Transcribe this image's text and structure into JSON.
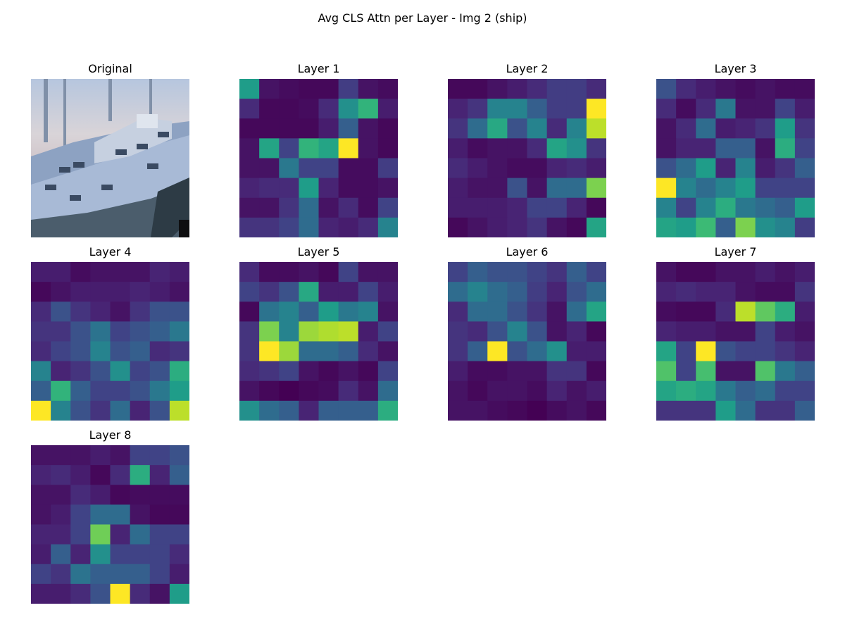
{
  "figure": {
    "title": "Avg CLS Attn per Layer - Img 2 (ship)"
  },
  "colors": {
    "background": "#ffffff",
    "colormap": "viridis",
    "colormap_stops": [
      "#440154",
      "#482878",
      "#3e4a89",
      "#31688e",
      "#26828e",
      "#1f9e89",
      "#35b779",
      "#6ece58",
      "#b5de2b",
      "#fde725"
    ]
  },
  "chart_data": [
    {
      "type": "image",
      "title": "Original",
      "description_source": "input image (ship)"
    },
    {
      "type": "heatmap",
      "title": "Layer 1",
      "colormap": "viridis",
      "values": [
        [
          0.55,
          0.05,
          0.03,
          0.02,
          0.02,
          0.18,
          0.05,
          0.03
        ],
        [
          0.12,
          0.02,
          0.02,
          0.03,
          0.12,
          0.5,
          0.65,
          0.08
        ],
        [
          0.02,
          0.02,
          0.02,
          0.02,
          0.08,
          0.3,
          0.05,
          0.02
        ],
        [
          0.05,
          0.58,
          0.2,
          0.65,
          0.58,
          1.0,
          0.05,
          0.02
        ],
        [
          0.05,
          0.05,
          0.4,
          0.2,
          0.2,
          0.03,
          0.03,
          0.18
        ],
        [
          0.1,
          0.12,
          0.12,
          0.55,
          0.1,
          0.03,
          0.03,
          0.05
        ],
        [
          0.05,
          0.05,
          0.15,
          0.35,
          0.05,
          0.12,
          0.03,
          0.2
        ],
        [
          0.15,
          0.15,
          0.2,
          0.35,
          0.1,
          0.08,
          0.12,
          0.45
        ]
      ]
    },
    {
      "type": "heatmap",
      "title": "Layer 2",
      "colormap": "viridis",
      "values": [
        [
          0.02,
          0.02,
          0.05,
          0.08,
          0.12,
          0.18,
          0.18,
          0.12
        ],
        [
          0.1,
          0.15,
          0.45,
          0.45,
          0.3,
          0.18,
          0.18,
          1.0
        ],
        [
          0.15,
          0.35,
          0.6,
          0.25,
          0.45,
          0.12,
          0.45,
          0.9
        ],
        [
          0.08,
          0.03,
          0.05,
          0.05,
          0.12,
          0.58,
          0.5,
          0.15
        ],
        [
          0.12,
          0.08,
          0.05,
          0.03,
          0.03,
          0.1,
          0.12,
          0.08
        ],
        [
          0.08,
          0.05,
          0.05,
          0.25,
          0.05,
          0.35,
          0.35,
          0.8
        ],
        [
          0.08,
          0.08,
          0.08,
          0.1,
          0.2,
          0.2,
          0.1,
          0.02
        ],
        [
          0.02,
          0.05,
          0.08,
          0.1,
          0.15,
          0.05,
          0.02,
          0.58
        ]
      ]
    },
    {
      "type": "heatmap",
      "title": "Layer 3",
      "colormap": "viridis",
      "values": [
        [
          0.25,
          0.12,
          0.08,
          0.05,
          0.03,
          0.05,
          0.03,
          0.03
        ],
        [
          0.12,
          0.03,
          0.12,
          0.4,
          0.05,
          0.05,
          0.2,
          0.08
        ],
        [
          0.05,
          0.12,
          0.35,
          0.08,
          0.1,
          0.15,
          0.55,
          0.15
        ],
        [
          0.05,
          0.1,
          0.1,
          0.3,
          0.3,
          0.05,
          0.62,
          0.2
        ],
        [
          0.25,
          0.35,
          0.55,
          0.1,
          0.45,
          0.08,
          0.15,
          0.3
        ],
        [
          1.0,
          0.45,
          0.35,
          0.45,
          0.55,
          0.2,
          0.2,
          0.2
        ],
        [
          0.45,
          0.2,
          0.45,
          0.62,
          0.4,
          0.35,
          0.3,
          0.55
        ],
        [
          0.58,
          0.55,
          0.68,
          0.3,
          0.8,
          0.5,
          0.45,
          0.18
        ]
      ]
    },
    {
      "type": "heatmap",
      "title": "Layer 4",
      "colormap": "viridis",
      "values": [
        [
          0.08,
          0.08,
          0.03,
          0.05,
          0.05,
          0.05,
          0.1,
          0.08
        ],
        [
          0.02,
          0.05,
          0.08,
          0.08,
          0.08,
          0.1,
          0.08,
          0.05
        ],
        [
          0.12,
          0.25,
          0.15,
          0.1,
          0.05,
          0.15,
          0.25,
          0.25
        ],
        [
          0.15,
          0.15,
          0.25,
          0.38,
          0.2,
          0.25,
          0.3,
          0.4
        ],
        [
          0.12,
          0.2,
          0.25,
          0.45,
          0.25,
          0.3,
          0.12,
          0.15
        ],
        [
          0.45,
          0.1,
          0.15,
          0.25,
          0.5,
          0.2,
          0.25,
          0.62
        ],
        [
          0.3,
          0.65,
          0.3,
          0.2,
          0.2,
          0.25,
          0.4,
          0.55
        ],
        [
          1.0,
          0.45,
          0.25,
          0.15,
          0.35,
          0.1,
          0.25,
          0.9
        ]
      ]
    },
    {
      "type": "heatmap",
      "title": "Layer 5",
      "colormap": "viridis",
      "values": [
        [
          0.12,
          0.03,
          0.03,
          0.05,
          0.02,
          0.2,
          0.05,
          0.05
        ],
        [
          0.2,
          0.15,
          0.25,
          0.6,
          0.08,
          0.08,
          0.2,
          0.08
        ],
        [
          0.02,
          0.38,
          0.45,
          0.3,
          0.55,
          0.4,
          0.45,
          0.05
        ],
        [
          0.15,
          0.8,
          0.45,
          0.85,
          0.88,
          0.9,
          0.08,
          0.2
        ],
        [
          0.15,
          1.0,
          0.85,
          0.35,
          0.35,
          0.3,
          0.12,
          0.05
        ],
        [
          0.12,
          0.15,
          0.2,
          0.05,
          0.02,
          0.05,
          0.02,
          0.2
        ],
        [
          0.05,
          0.02,
          0.0,
          0.02,
          0.03,
          0.12,
          0.05,
          0.35
        ],
        [
          0.5,
          0.35,
          0.3,
          0.1,
          0.3,
          0.3,
          0.3,
          0.62
        ]
      ]
    },
    {
      "type": "heatmap",
      "title": "Layer 6",
      "colormap": "viridis",
      "values": [
        [
          0.2,
          0.3,
          0.25,
          0.25,
          0.2,
          0.15,
          0.3,
          0.2
        ],
        [
          0.35,
          0.45,
          0.35,
          0.3,
          0.18,
          0.1,
          0.25,
          0.35
        ],
        [
          0.12,
          0.35,
          0.35,
          0.25,
          0.15,
          0.05,
          0.35,
          0.58
        ],
        [
          0.15,
          0.12,
          0.25,
          0.45,
          0.25,
          0.05,
          0.1,
          0.02
        ],
        [
          0.15,
          0.3,
          1.0,
          0.25,
          0.35,
          0.5,
          0.08,
          0.08
        ],
        [
          0.08,
          0.03,
          0.03,
          0.05,
          0.05,
          0.15,
          0.15,
          0.02
        ],
        [
          0.05,
          0.02,
          0.05,
          0.05,
          0.03,
          0.1,
          0.05,
          0.08
        ],
        [
          0.05,
          0.05,
          0.03,
          0.02,
          0.0,
          0.03,
          0.05,
          0.02
        ]
      ]
    },
    {
      "type": "heatmap",
      "title": "Layer 7",
      "colormap": "viridis",
      "values": [
        [
          0.05,
          0.02,
          0.02,
          0.05,
          0.05,
          0.08,
          0.05,
          0.08
        ],
        [
          0.1,
          0.12,
          0.1,
          0.1,
          0.05,
          0.03,
          0.03,
          0.15
        ],
        [
          0.03,
          0.02,
          0.02,
          0.12,
          0.9,
          0.75,
          0.62,
          0.08
        ],
        [
          0.1,
          0.08,
          0.08,
          0.05,
          0.05,
          0.2,
          0.08,
          0.05
        ],
        [
          0.58,
          0.2,
          1.0,
          0.25,
          0.2,
          0.2,
          0.15,
          0.1
        ],
        [
          0.72,
          0.2,
          0.7,
          0.05,
          0.05,
          0.72,
          0.4,
          0.3
        ],
        [
          0.58,
          0.62,
          0.58,
          0.4,
          0.3,
          0.35,
          0.2,
          0.2
        ],
        [
          0.15,
          0.15,
          0.15,
          0.55,
          0.35,
          0.15,
          0.15,
          0.3
        ]
      ]
    },
    {
      "type": "heatmap",
      "title": "Layer 8",
      "colormap": "viridis",
      "values": [
        [
          0.05,
          0.05,
          0.05,
          0.08,
          0.05,
          0.2,
          0.2,
          0.25
        ],
        [
          0.1,
          0.12,
          0.08,
          0.02,
          0.12,
          0.62,
          0.1,
          0.3
        ],
        [
          0.05,
          0.05,
          0.12,
          0.08,
          0.02,
          0.03,
          0.03,
          0.03
        ],
        [
          0.05,
          0.08,
          0.2,
          0.35,
          0.35,
          0.05,
          0.02,
          0.02
        ],
        [
          0.1,
          0.1,
          0.2,
          0.78,
          0.1,
          0.35,
          0.2,
          0.2
        ],
        [
          0.08,
          0.3,
          0.1,
          0.5,
          0.2,
          0.2,
          0.2,
          0.12
        ],
        [
          0.2,
          0.15,
          0.38,
          0.3,
          0.3,
          0.3,
          0.2,
          0.08
        ],
        [
          0.08,
          0.08,
          0.12,
          0.25,
          1.0,
          0.12,
          0.05,
          0.55
        ]
      ]
    }
  ]
}
